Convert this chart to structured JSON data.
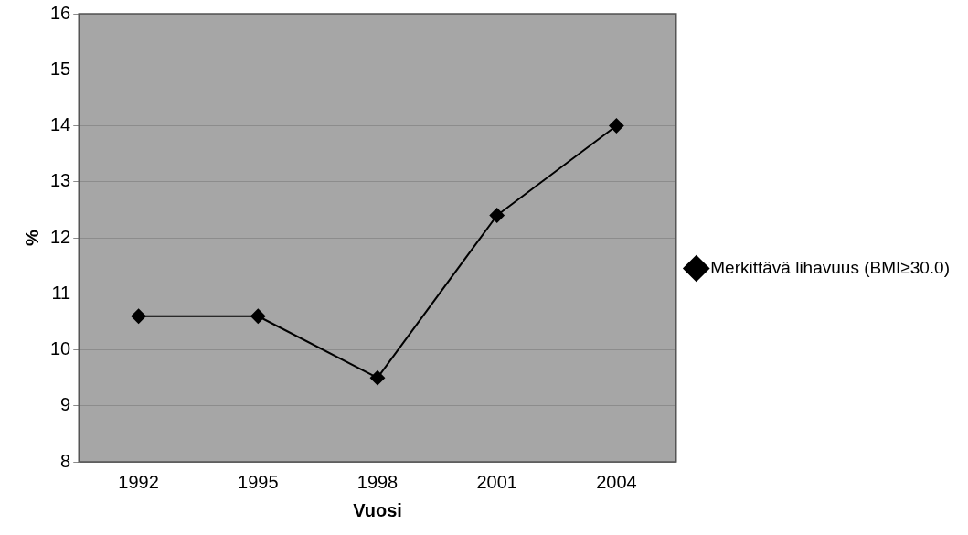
{
  "chart_data": {
    "type": "line",
    "xlabel": "Vuosi",
    "ylabel": "%",
    "categories": [
      "1992",
      "1995",
      "1998",
      "2001",
      "2004"
    ],
    "series": [
      {
        "name": "Merkittävä lihavuus (BMI≥30.0)",
        "color": "#000000",
        "values": [
          10.6,
          10.6,
          9.5,
          12.4,
          14.0
        ]
      }
    ],
    "ylim": [
      8,
      16
    ],
    "yticks": [
      8,
      9,
      10,
      11,
      12,
      13,
      14,
      15,
      16
    ],
    "grid": "y",
    "legend": "right",
    "marker": "diamond",
    "line_style": "solid"
  }
}
